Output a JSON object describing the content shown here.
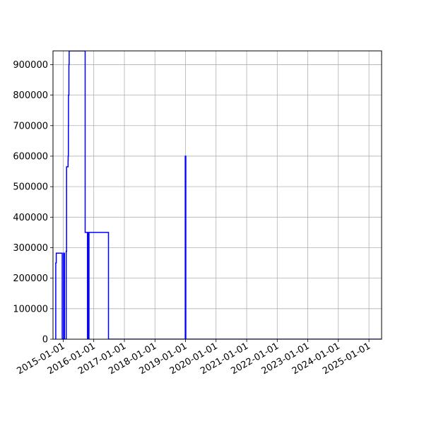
{
  "chart_data": {
    "type": "line",
    "title": "",
    "xlabel": "",
    "ylabel": "",
    "grid": true,
    "color": "#0000ff",
    "xlim": [
      "2014-09-01",
      "2025-06-01"
    ],
    "ylim": [
      0,
      945000
    ],
    "y_ticks": [
      0,
      100000,
      200000,
      300000,
      400000,
      500000,
      600000,
      700000,
      800000,
      900000
    ],
    "y_tick_labels": [
      "0",
      "100000",
      "200000",
      "300000",
      "400000",
      "500000",
      "600000",
      "700000",
      "800000",
      "900000"
    ],
    "x_ticks": [
      "2015-01-01",
      "2016-01-01",
      "2017-01-01",
      "2018-01-01",
      "2019-01-01",
      "2020-01-01",
      "2021-01-01",
      "2022-01-01",
      "2023-01-01",
      "2024-01-01",
      "2025-01-01"
    ],
    "x_tick_labels": [
      "2015-01-01",
      "2016-01-01",
      "2017-01-01",
      "2018-01-01",
      "2019-01-01",
      "2020-01-01",
      "2021-01-01",
      "2022-01-01",
      "2023-01-01",
      "2024-01-01",
      "2025-01-01"
    ],
    "series": [
      {
        "x": [
          "2014-10-01",
          "2014-10-04",
          "2014-10-04",
          "2014-10-10",
          "2014-10-10",
          "2014-12-20",
          "2014-12-20",
          "2015-01-06",
          "2015-01-06",
          "2015-01-16",
          "2015-01-16",
          "2015-02-06",
          "2015-02-06",
          "2015-02-10",
          "2015-02-10",
          "2015-02-28",
          "2015-02-28",
          "2015-03-01",
          "2015-03-01",
          "2015-03-04",
          "2015-03-04",
          "2015-03-05",
          "2015-03-05",
          "2015-03-10",
          "2015-03-10",
          "2015-03-13",
          "2015-03-13",
          "2015-09-20",
          "2015-09-20",
          "2015-10-18",
          "2015-10-18",
          "2015-10-25",
          "2015-10-25",
          "2015-11-01",
          "2015-11-01",
          "2015-11-05",
          "2015-11-05",
          "2016-06-25",
          "2016-06-25",
          "2018-12-29",
          "2018-12-29",
          "2019-01-05",
          "2019-01-05",
          "2025-06-01"
        ],
        "y": [
          0,
          0,
          250000,
          250000,
          282000,
          282000,
          0,
          0,
          282000,
          282000,
          0,
          0,
          288000,
          288000,
          565000,
          565000,
          585000,
          585000,
          600000,
          600000,
          700000,
          700000,
          800000,
          800000,
          900000,
          900000,
          945000,
          945000,
          350000,
          350000,
          0,
          0,
          350000,
          350000,
          0,
          0,
          350000,
          350000,
          0,
          0,
          600000,
          600000,
          0,
          0
        ]
      }
    ]
  }
}
